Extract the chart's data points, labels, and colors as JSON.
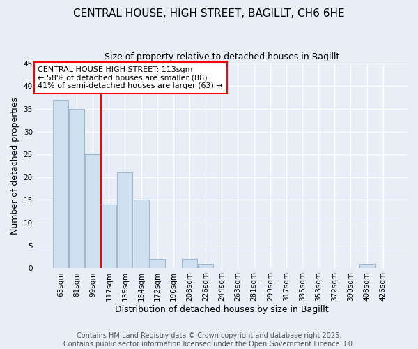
{
  "title1": "CENTRAL HOUSE, HIGH STREET, BAGILLT, CH6 6HE",
  "title2": "Size of property relative to detached houses in Bagillt",
  "xlabel": "Distribution of detached houses by size in Bagillt",
  "ylabel": "Number of detached properties",
  "categories": [
    "63sqm",
    "81sqm",
    "99sqm",
    "117sqm",
    "135sqm",
    "154sqm",
    "172sqm",
    "190sqm",
    "208sqm",
    "226sqm",
    "244sqm",
    "263sqm",
    "281sqm",
    "299sqm",
    "317sqm",
    "335sqm",
    "353sqm",
    "372sqm",
    "390sqm",
    "408sqm",
    "426sqm"
  ],
  "values": [
    37,
    35,
    25,
    14,
    21,
    15,
    2,
    0,
    2,
    1,
    0,
    0,
    0,
    0,
    0,
    0,
    0,
    0,
    0,
    1,
    0
  ],
  "bar_color": "#cfe0f0",
  "bar_edge_color": "#a0b8d0",
  "red_line_index": 3,
  "annotation_title": "CENTRAL HOUSE HIGH STREET: 113sqm",
  "annotation_line1": "← 58% of detached houses are smaller (88)",
  "annotation_line2": "41% of semi-detached houses are larger (63) →",
  "ylim": [
    0,
    45
  ],
  "yticks": [
    0,
    5,
    10,
    15,
    20,
    25,
    30,
    35,
    40,
    45
  ],
  "footer": "Contains HM Land Registry data © Crown copyright and database right 2025.\nContains public sector information licensed under the Open Government Licence 3.0.",
  "background_color": "#e8eef8",
  "grid_color": "#ffffff",
  "title1_fontsize": 11,
  "title2_fontsize": 9,
  "xlabel_fontsize": 9,
  "ylabel_fontsize": 9,
  "tick_fontsize": 7.5,
  "footer_fontsize": 7
}
